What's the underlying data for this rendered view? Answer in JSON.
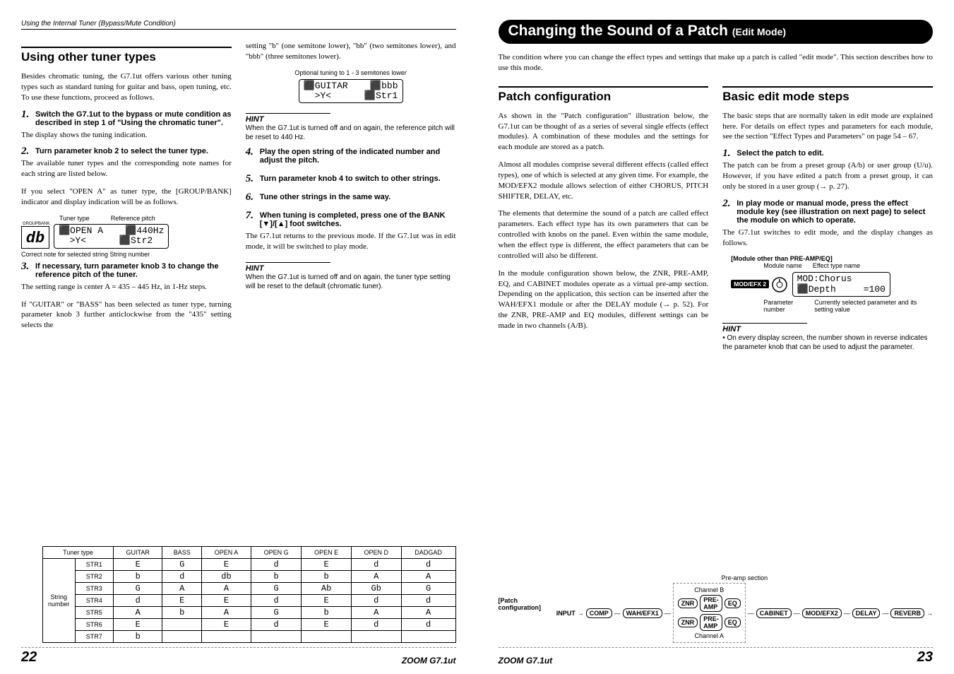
{
  "page_left": {
    "header": "Using the Internal Tuner (Bypass/Mute Condition)",
    "section_title": "Using other tuner types",
    "intro": "Besides chromatic tuning, the G7.1ut offers various other tuning types such as standard tuning for guitar and bass, open tuning, etc. To use these functions, proceed as follows.",
    "step1": "Switch the G7.1ut to the bypass or mute condition as described in step 1 of \"Using the chromatic tuner\".",
    "after1": "The display shows the tuning indication.",
    "step2": "Turn parameter knob 2 to select the tuner type.",
    "after2": "The available tuner types and the corresponding note names for each string are listed below.",
    "after2b": "If you select \"OPEN A\" as tuner type, the [GROUP/BANK] indicator and display indication will be as follows.",
    "fig_tunertype": "Tuner type",
    "fig_refpitch": "Reference pitch",
    "fig_lcd": "⬛OPEN A    ⬛440Hz\n  >Y<      ⬛Str2",
    "fig_db_labels": "GROUP  BANK",
    "fig_correctnote": "Correct note for selected string    String number",
    "step3": "If necessary, turn parameter knob 3 to change the reference pitch of the tuner.",
    "after3": "The setting range is center A = 435 – 445 Hz, in 1-Hz steps.",
    "after3b": "If \"GUITAR\" or \"BASS\" has been selected as tuner type, turning parameter knob 3 further anticlockwise from the \"435\" setting selects the",
    "col2_top": "setting \"b\" (one semitone lower), \"bb\" (two semitones lower), and \"bbb\" (three semitones lower).",
    "fig2_caption": "Optional tuning to 1 - 3 semitones lower",
    "fig2_lcd": "⬛GUITAR    ⬛bbb\n  >Y<      ⬛Str1",
    "hint1_label": "HINT",
    "hint1_text": "When the G7.1ut is turned off and on again, the reference pitch will be reset to 440 Hz.",
    "step4": "Play the open string of the indicated number and adjust the pitch.",
    "step5": "Turn parameter knob 4 to switch to other strings.",
    "step6": "Tune other strings in the same way.",
    "step7": "When tuning is completed, press one of the BANK [▼]/[▲] foot switches.",
    "after7": "The G7.1ut returns to the previous mode. If the G7.1ut was in edit mode, it will be switched to play mode.",
    "hint2_label": "HINT",
    "hint2_text": "When the G7.1ut is turned off and on again, the tuner type setting will be reset to the default (chromatic tuner).",
    "table": {
      "head": [
        "Tuner type",
        "GUITAR",
        "BASS",
        "OPEN A",
        "OPEN G",
        "OPEN E",
        "OPEN D",
        "DADGAD"
      ],
      "rowgroup": "String number",
      "rows": [
        [
          "STR1",
          "E",
          "G",
          "E",
          "d",
          "E",
          "d",
          "d"
        ],
        [
          "STR2",
          "b",
          "d",
          "db",
          "b",
          "b",
          "A",
          "A"
        ],
        [
          "STR3",
          "G",
          "A",
          "A",
          "G",
          "Ab",
          "Gb",
          "G"
        ],
        [
          "STR4",
          "d",
          "E",
          "E",
          "d",
          "E",
          "d",
          "d"
        ],
        [
          "STR5",
          "A",
          "b",
          "A",
          "G",
          "b",
          "A",
          "A"
        ],
        [
          "STR6",
          "E",
          "",
          "E",
          "d",
          "E",
          "d",
          "d"
        ],
        [
          "STR7",
          "b",
          "",
          "",
          "",
          "",
          "",
          ""
        ]
      ]
    },
    "page_num": "22",
    "model": "ZOOM G7.1ut"
  },
  "page_right": {
    "chapter": "Changing the Sound of a Patch",
    "chapter_sub": "(Edit Mode)",
    "chapter_intro": "The condition where you can change the effect types and settings that make up a patch is called \"edit mode\". This section describes how to use this mode.",
    "sec1_title": "Patch configuration",
    "sec1_p1": "As shown in the \"Patch configuration\" illustration below, the G7.1ut can be thought of as a series of several single effects (effect modules). A combination of these modules and the settings for each module are stored as a patch.",
    "sec1_p2": "Almost all modules comprise several different effects (called effect types), one of which is selected at any given time. For example, the MOD/EFX2 module allows selection of either CHORUS, PITCH SHIFTER, DELAY, etc.",
    "sec1_p3": "The elements that determine the sound of a patch are called effect parameters. Each effect type has its own parameters that can be controlled with knobs on the panel. Even within the same module, when the effect type is different, the effect parameters that can be controlled will also be different.",
    "sec1_p4": "In the module configuration shown below, the ZNR, PRE-AMP, EQ, and CABINET modules operate as a virtual pre-amp section. Depending on the application, this section can be inserted after the WAH/EFX1 module or after the DELAY module (→ p. 52). For the ZNR, PRE-AMP and EQ modules, different settings can be made in two channels (A/B).",
    "sec2_title": "Basic edit mode steps",
    "sec2_p1": "The basic steps that are normally taken in edit mode are explained here. For details on effect types and parameters for each module, see the section \"Effect Types and Parameters\" on page 54 – 67.",
    "step1": "Select the patch to edit.",
    "after1": "The patch can be from a preset group (A/b) or user group (U/u). However, if you have edited a patch from a preset group, it can only be stored in a user group (→ p. 27).",
    "step2": "In play mode or manual mode, press the effect module key (see illustration on next page) to select the module on which to operate.",
    "after2": "The G7.1ut switches to edit mode, and the display changes as follows.",
    "modfig_title": "[Module other than PRE-AMP/EQ]",
    "modfig_mname": "Module name",
    "modfig_ename": "Effect type name",
    "modfig_tag": "MOD/EFX 2",
    "modfig_lcd": "MOD:Chorus\n⬛Depth     =100",
    "modfig_pnum": "Parameter number",
    "modfig_pval": "Currently selected parameter and its setting value",
    "hint_label": "HINT",
    "hint_bullet": "• On every display screen, the number shown in reverse indicates the parameter knob that can be used to adjust the parameter.",
    "patchcfg_label": "[Patch configuration]",
    "preamp_label": "Pre-amp section",
    "channel_b": "Channel B",
    "channel_a": "Channel A",
    "flow": {
      "input": "INPUT",
      "comp": "COMP",
      "wah": "WAH/EFX1",
      "znr": "ZNR",
      "preamp": "PRE-AMP",
      "eq": "EQ",
      "cabinet": "CABINET",
      "modefx2": "MOD/EFX2",
      "delay": "DELAY",
      "reverb": "REVERB"
    },
    "page_num": "23",
    "model": "ZOOM G7.1ut"
  }
}
